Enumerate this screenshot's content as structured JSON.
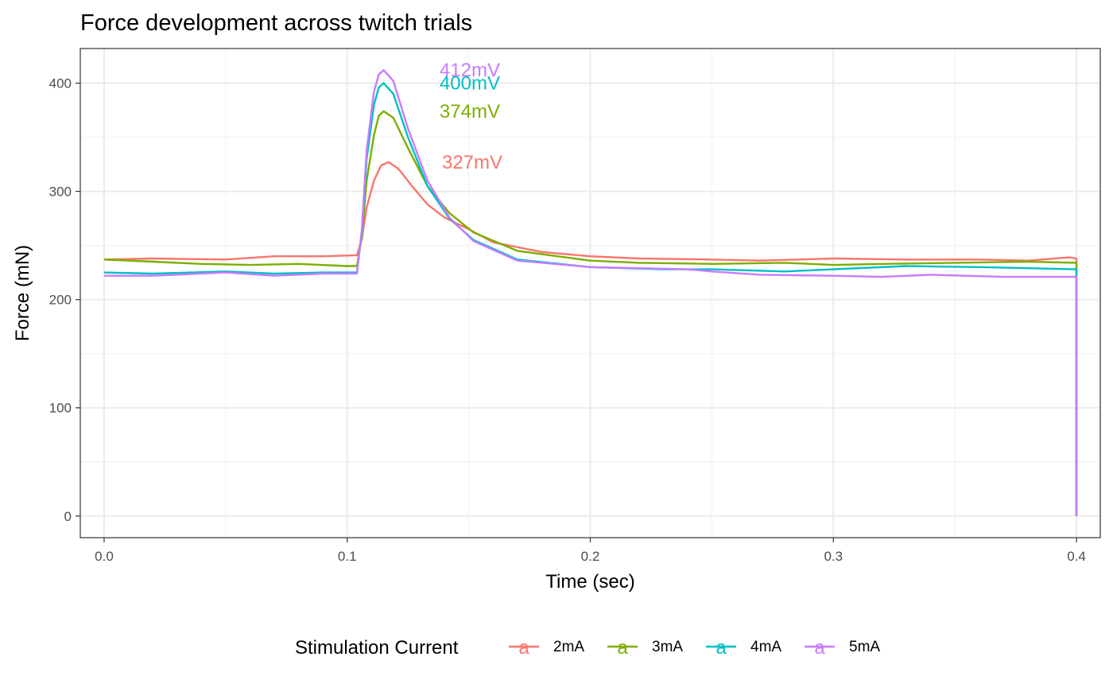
{
  "chart_data": {
    "type": "line",
    "title": "Force development across twitch trials",
    "xlabel": "Time (sec)",
    "ylabel": "Force (mN)",
    "xlim": [
      -0.0098,
      0.4098
    ],
    "ylim": [
      -20,
      432
    ],
    "x_ticks": [
      0.0,
      0.1,
      0.2,
      0.3,
      0.4
    ],
    "x_tick_labels": [
      "0.0",
      "0.1",
      "0.2",
      "0.3",
      "0.4"
    ],
    "y_ticks": [
      0,
      100,
      200,
      300,
      400
    ],
    "y_tick_labels": [
      "0",
      "100",
      "200",
      "300",
      "400"
    ],
    "grid": true,
    "legend": {
      "title": "Stimulation Current",
      "position": "bottom",
      "key_glyph": "a"
    },
    "series": [
      {
        "name": "2mA",
        "color": "#F8766D",
        "peak_label": "327mV",
        "points": [
          [
            0.0,
            237
          ],
          [
            0.02,
            238
          ],
          [
            0.05,
            237
          ],
          [
            0.07,
            240
          ],
          [
            0.09,
            240
          ],
          [
            0.104,
            241
          ],
          [
            0.106,
            256
          ],
          [
            0.108,
            285
          ],
          [
            0.111,
            310
          ],
          [
            0.114,
            324
          ],
          [
            0.117,
            327
          ],
          [
            0.121,
            321
          ],
          [
            0.127,
            304
          ],
          [
            0.133,
            288
          ],
          [
            0.14,
            276
          ],
          [
            0.15,
            265
          ],
          [
            0.16,
            253
          ],
          [
            0.18,
            244
          ],
          [
            0.2,
            240
          ],
          [
            0.22,
            238
          ],
          [
            0.25,
            237
          ],
          [
            0.27,
            236
          ],
          [
            0.3,
            238
          ],
          [
            0.33,
            237
          ],
          [
            0.36,
            237
          ],
          [
            0.38,
            236
          ],
          [
            0.397,
            239
          ],
          [
            0.4,
            238
          ],
          [
            0.4,
            0
          ]
        ]
      },
      {
        "name": "3mA",
        "color": "#7CAE00",
        "peak_label": "374mV",
        "points": [
          [
            0.0,
            237
          ],
          [
            0.02,
            235
          ],
          [
            0.04,
            233
          ],
          [
            0.06,
            232
          ],
          [
            0.08,
            233
          ],
          [
            0.1,
            231
          ],
          [
            0.104,
            231
          ],
          [
            0.106,
            258
          ],
          [
            0.108,
            310
          ],
          [
            0.111,
            352
          ],
          [
            0.113,
            370
          ],
          [
            0.115,
            374
          ],
          [
            0.119,
            368
          ],
          [
            0.125,
            340
          ],
          [
            0.133,
            305
          ],
          [
            0.142,
            280
          ],
          [
            0.152,
            262
          ],
          [
            0.17,
            245
          ],
          [
            0.2,
            236
          ],
          [
            0.22,
            234
          ],
          [
            0.25,
            233
          ],
          [
            0.28,
            234
          ],
          [
            0.3,
            232
          ],
          [
            0.32,
            233
          ],
          [
            0.35,
            234
          ],
          [
            0.38,
            235
          ],
          [
            0.4,
            234
          ],
          [
            0.4,
            0
          ]
        ]
      },
      {
        "name": "4mA",
        "color": "#00BFC4",
        "peak_label": "400mV",
        "points": [
          [
            0.0,
            225
          ],
          [
            0.02,
            224
          ],
          [
            0.05,
            226
          ],
          [
            0.07,
            224
          ],
          [
            0.09,
            225
          ],
          [
            0.104,
            225
          ],
          [
            0.106,
            262
          ],
          [
            0.108,
            330
          ],
          [
            0.111,
            380
          ],
          [
            0.113,
            396
          ],
          [
            0.115,
            400
          ],
          [
            0.119,
            390
          ],
          [
            0.125,
            350
          ],
          [
            0.133,
            305
          ],
          [
            0.142,
            275
          ],
          [
            0.152,
            255
          ],
          [
            0.17,
            237
          ],
          [
            0.2,
            230
          ],
          [
            0.23,
            228
          ],
          [
            0.25,
            228
          ],
          [
            0.28,
            226
          ],
          [
            0.3,
            228
          ],
          [
            0.33,
            231
          ],
          [
            0.36,
            230
          ],
          [
            0.38,
            229
          ],
          [
            0.4,
            228
          ],
          [
            0.4,
            0
          ]
        ]
      },
      {
        "name": "5mA",
        "color": "#C77CFF",
        "peak_label": "412mV",
        "points": [
          [
            0.0,
            222
          ],
          [
            0.02,
            222
          ],
          [
            0.05,
            225
          ],
          [
            0.07,
            222
          ],
          [
            0.09,
            224
          ],
          [
            0.104,
            224
          ],
          [
            0.106,
            265
          ],
          [
            0.108,
            338
          ],
          [
            0.111,
            392
          ],
          [
            0.113,
            408
          ],
          [
            0.115,
            412
          ],
          [
            0.119,
            402
          ],
          [
            0.125,
            358
          ],
          [
            0.133,
            310
          ],
          [
            0.142,
            276
          ],
          [
            0.152,
            254
          ],
          [
            0.17,
            236
          ],
          [
            0.2,
            230
          ],
          [
            0.22,
            229
          ],
          [
            0.24,
            228
          ],
          [
            0.25,
            226
          ],
          [
            0.27,
            223
          ],
          [
            0.3,
            222
          ],
          [
            0.32,
            221
          ],
          [
            0.34,
            223
          ],
          [
            0.37,
            221
          ],
          [
            0.4,
            221
          ],
          [
            0.4,
            0
          ]
        ]
      }
    ],
    "peak_label_positions": [
      {
        "series": "2mA",
        "x": 0.139,
        "y": 327
      },
      {
        "series": "3mA",
        "x": 0.138,
        "y": 374
      },
      {
        "series": "4mA",
        "x": 0.138,
        "y": 400
      },
      {
        "series": "5mA",
        "x": 0.138,
        "y": 412
      }
    ]
  }
}
